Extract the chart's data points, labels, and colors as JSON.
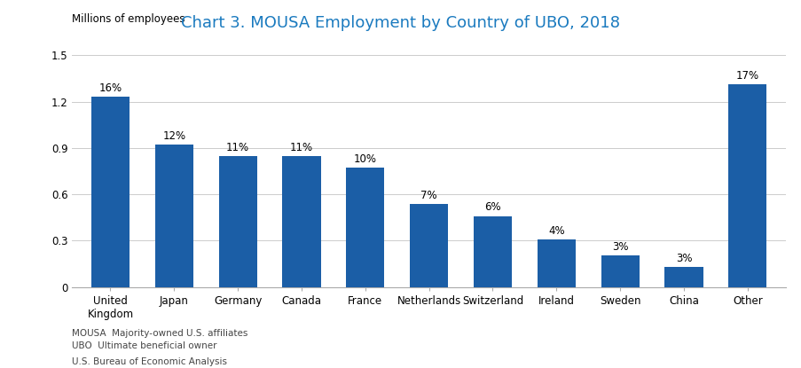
{
  "title": "Chart 3. MOUSA Employment by Country of UBO, 2018",
  "ylabel": "Millions of employees",
  "categories": [
    "United\nKingdom",
    "Japan",
    "Germany",
    "Canada",
    "France",
    "Netherlands",
    "Switzerland",
    "Ireland",
    "Sweden",
    "China",
    "Other"
  ],
  "values": [
    1.23,
    0.92,
    0.845,
    0.845,
    0.77,
    0.538,
    0.46,
    0.307,
    0.205,
    0.13,
    1.31
  ],
  "percentages": [
    "16%",
    "12%",
    "11%",
    "11%",
    "10%",
    "7%",
    "6%",
    "4%",
    "3%",
    "3%",
    "17%"
  ],
  "bar_color": "#1B5EA6",
  "ylim": [
    0,
    1.5
  ],
  "yticks": [
    0,
    0.3,
    0.6,
    0.9,
    1.2,
    1.5
  ],
  "ytick_labels": [
    "0",
    "0.3",
    "0.6",
    "0.9",
    "1.2",
    "1.5"
  ],
  "title_color": "#1a7abf",
  "title_fontsize": 13,
  "ylabel_fontsize": 8.5,
  "tick_fontsize": 8.5,
  "pct_fontsize": 8.5,
  "footnote_line1": "MOUSA  Majority-owned U.S. affiliates",
  "footnote_line2": "UBO  Ultimate beneficial owner",
  "footnote_line3": "U.S. Bureau of Economic Analysis",
  "footnote_fontsize": 7.5,
  "background_color": "#ffffff",
  "grid_color": "#cccccc"
}
